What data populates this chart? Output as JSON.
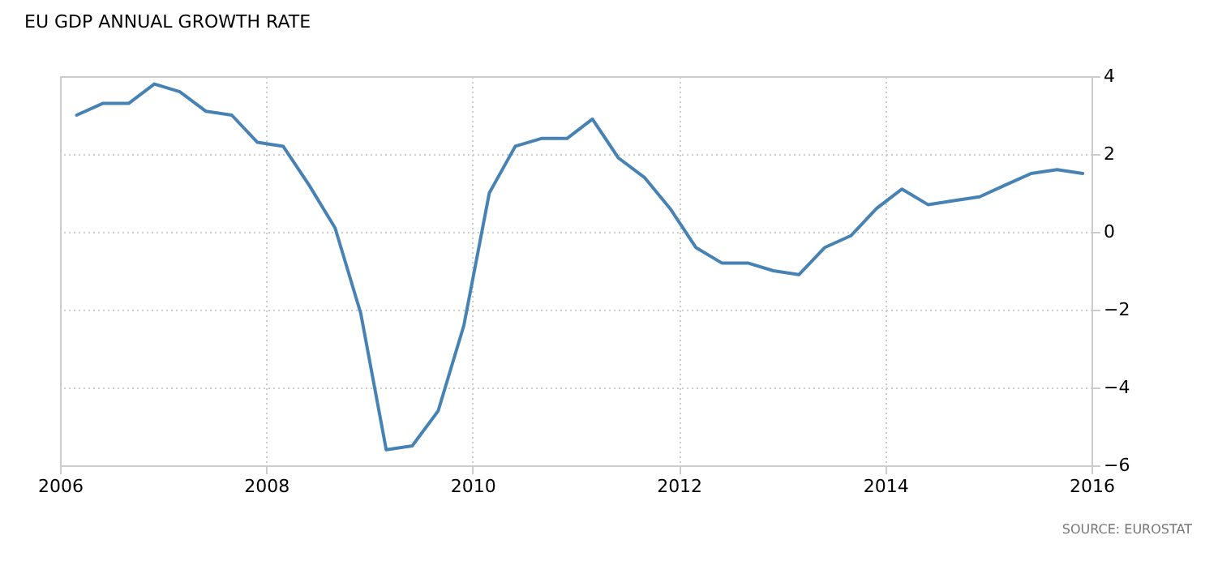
{
  "chart_data": {
    "type": "line",
    "title": "EU GDP ANNUAL GROWTH RATE",
    "x": [
      "2006-03",
      "2006-06",
      "2006-09",
      "2006-12",
      "2007-03",
      "2007-06",
      "2007-09",
      "2007-12",
      "2008-03",
      "2008-06",
      "2008-09",
      "2008-12",
      "2009-03",
      "2009-06",
      "2009-09",
      "2009-12",
      "2010-03",
      "2010-06",
      "2010-09",
      "2010-12",
      "2011-03",
      "2011-06",
      "2011-09",
      "2011-12",
      "2012-03",
      "2012-06",
      "2012-09",
      "2012-12",
      "2013-03",
      "2013-06",
      "2013-09",
      "2013-12",
      "2014-03",
      "2014-06",
      "2014-09",
      "2014-12",
      "2015-03",
      "2015-06",
      "2015-09",
      "2015-12"
    ],
    "series": [
      {
        "color": "#4682b4",
        "values": [
          3.0,
          3.3,
          3.3,
          3.8,
          3.6,
          3.1,
          3.0,
          2.3,
          2.2,
          1.2,
          0.1,
          -2.1,
          -5.6,
          -5.5,
          -4.6,
          -2.4,
          1.0,
          2.2,
          2.4,
          2.4,
          2.9,
          1.9,
          1.4,
          0.6,
          -0.4,
          -0.8,
          -0.8,
          -1.0,
          -1.1,
          -0.4,
          -0.1,
          0.6,
          1.1,
          0.7,
          0.8,
          0.9,
          1.2,
          1.5,
          1.6,
          1.5
        ]
      }
    ],
    "xlim": [
      "2006",
      "2016"
    ],
    "xticks": [
      "2006",
      "2008",
      "2010",
      "2012",
      "2014",
      "2016"
    ],
    "ylim": [
      -6,
      4
    ],
    "yticks": [
      -6,
      -4,
      -2,
      0,
      2,
      4
    ],
    "grid": true,
    "marker": "none",
    "line_style": "solid",
    "annotations": [
      "SOURCE: EUROSTAT"
    ]
  }
}
